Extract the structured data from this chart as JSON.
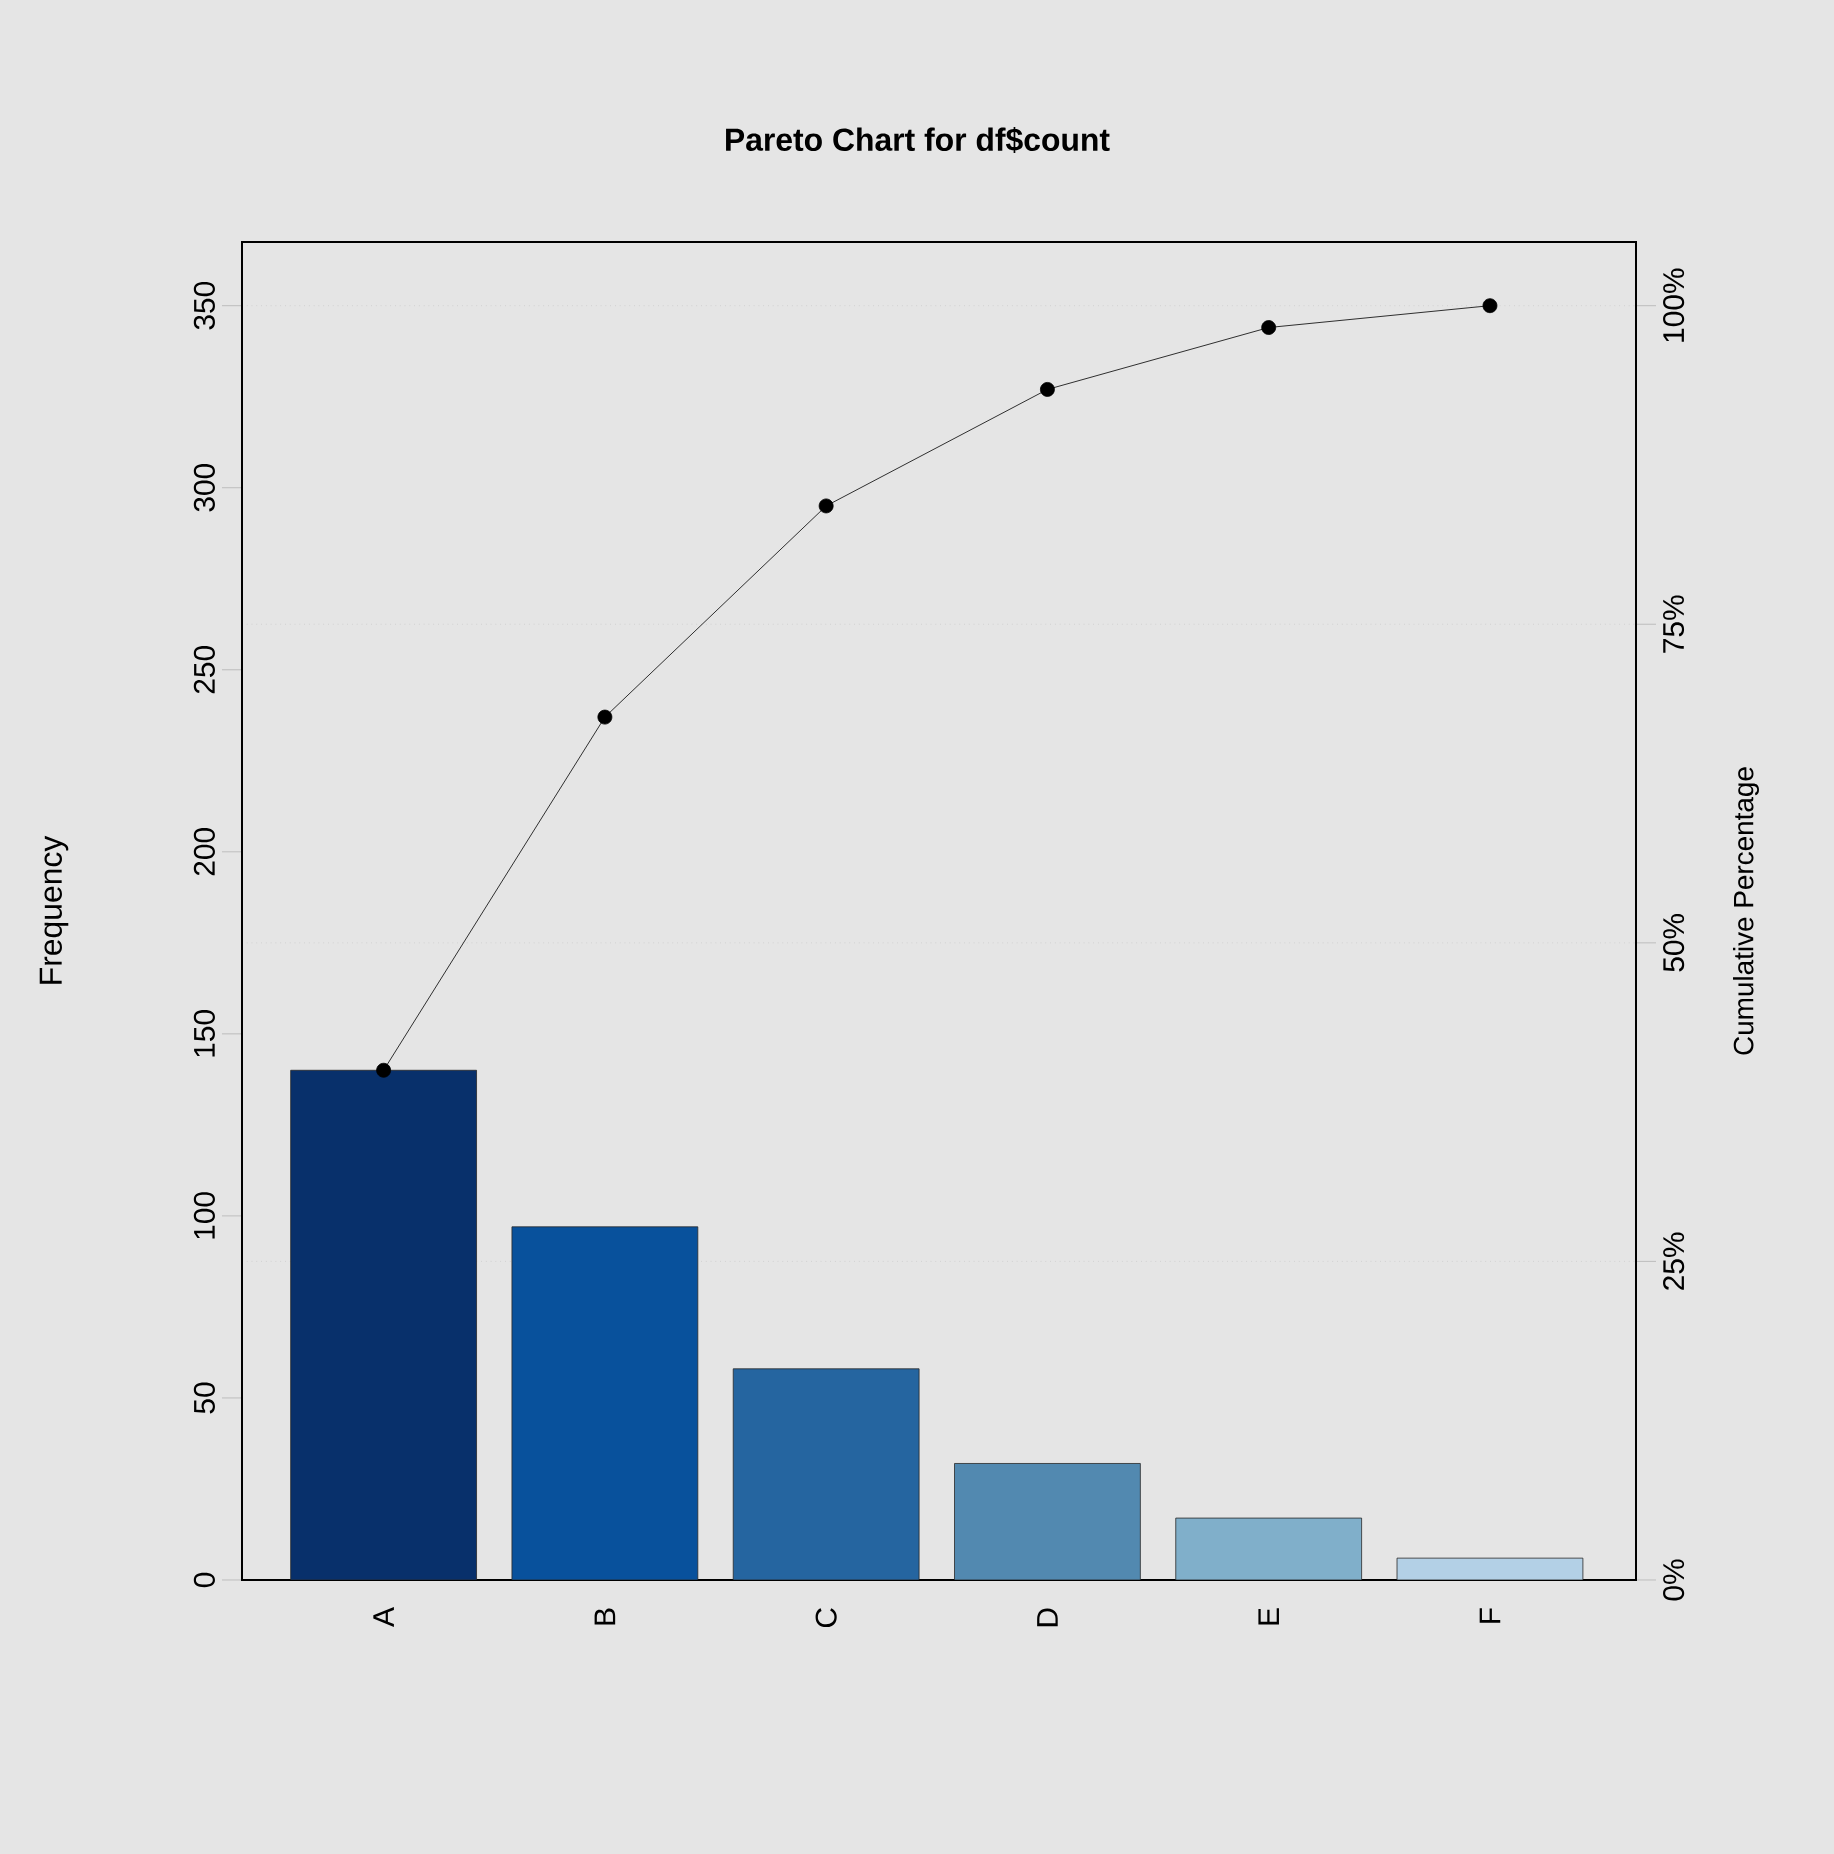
{
  "chart_data": {
    "type": "bar",
    "title": "Pareto Chart for df$count",
    "ylabel": "Frequency",
    "y2label": "Cumulative Percentage",
    "categories": [
      "A",
      "B",
      "C",
      "D",
      "E",
      "F"
    ],
    "series": [
      {
        "type": "bar",
        "colors": [
          "#08306b",
          "#08519c",
          "#2565a0",
          "#5289b0",
          "#80afca",
          "#b3d0e6"
        ],
        "values": [
          140,
          97,
          58,
          32,
          17,
          6
        ]
      },
      {
        "type": "line",
        "color": "#000000",
        "marker": "circle",
        "line_style": "solid",
        "values": [
          140,
          237,
          295,
          327,
          344,
          350
        ]
      }
    ],
    "ylim": [
      0,
      367.5
    ],
    "yticks": [
      0,
      50,
      100,
      150,
      200,
      250,
      300,
      350
    ],
    "y2lim": [
      0,
      105
    ],
    "y2ticks": [
      {
        "value": 0,
        "label": "0%"
      },
      {
        "value": 25,
        "label": "25%"
      },
      {
        "value": 50,
        "label": "50%"
      },
      {
        "value": 75,
        "label": "75%"
      },
      {
        "value": 100,
        "label": "100%"
      }
    ],
    "grid": true
  }
}
